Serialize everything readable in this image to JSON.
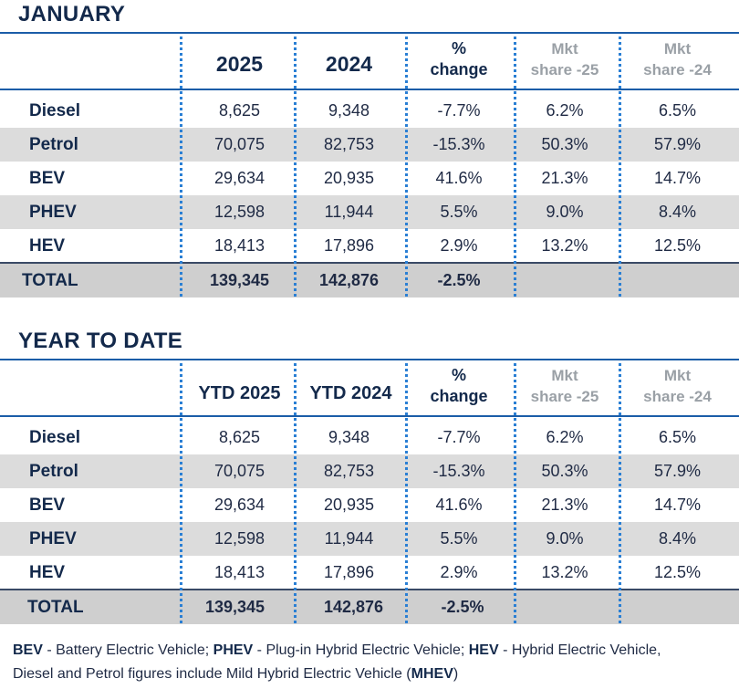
{
  "sections": [
    {
      "title": "JANUARY",
      "headers": [
        "2025",
        "2024",
        "%",
        "change",
        "Mkt",
        "share -25",
        "Mkt",
        "share -24"
      ],
      "rows": [
        {
          "label": "Diesel",
          "v2025": "8,625",
          "v2024": "9,348",
          "change": "-7.7%",
          "share25": "6.2%",
          "share24": "6.5%"
        },
        {
          "label": "Petrol",
          "v2025": "70,075",
          "v2024": "82,753",
          "change": "-15.3%",
          "share25": "50.3%",
          "share24": "57.9%"
        },
        {
          "label": "BEV",
          "v2025": "29,634",
          "v2024": "20,935",
          "change": "41.6%",
          "share25": "21.3%",
          "share24": "14.7%"
        },
        {
          "label": "PHEV",
          "v2025": "12,598",
          "v2024": "11,944",
          "change": "5.5%",
          "share25": "9.0%",
          "share24": "8.4%"
        },
        {
          "label": "HEV",
          "v2025": "18,413",
          "v2024": "17,896",
          "change": "2.9%",
          "share25": "13.2%",
          "share24": "12.5%"
        }
      ],
      "total": {
        "label": "TOTAL",
        "v2025": "139,345",
        "v2024": "142,876",
        "change": "-2.5%"
      }
    },
    {
      "title": "YEAR TO DATE",
      "headers": [
        "YTD 2025",
        "YTD 2024",
        "%",
        "change",
        "Mkt",
        "share -25",
        "Mkt",
        "share -24"
      ],
      "rows": [
        {
          "label": "Diesel",
          "v2025": "8,625",
          "v2024": "9,348",
          "change": "-7.7%",
          "share25": "6.2%",
          "share24": "6.5%"
        },
        {
          "label": "Petrol",
          "v2025": "70,075",
          "v2024": "82,753",
          "change": "-15.3%",
          "share25": "50.3%",
          "share24": "57.9%"
        },
        {
          "label": "BEV",
          "v2025": "29,634",
          "v2024": "20,935",
          "change": "41.6%",
          "share25": "21.3%",
          "share24": "14.7%"
        },
        {
          "label": "PHEV",
          "v2025": "12,598",
          "v2024": "11,944",
          "change": "5.5%",
          "share25": "9.0%",
          "share24": "8.4%"
        },
        {
          "label": "HEV",
          "v2025": "18,413",
          "v2024": "17,896",
          "change": "2.9%",
          "share25": "13.2%",
          "share24": "12.5%"
        }
      ],
      "total": {
        "label": "TOTAL",
        "v2025": "139,345",
        "v2024": "142,876",
        "change": "-2.5%"
      }
    }
  ],
  "footnote": {
    "line1": [
      {
        "t": "BEV",
        "b": true
      },
      {
        "t": " - Battery Electric Vehicle; ",
        "b": false
      },
      {
        "t": "PHEV",
        "b": true
      },
      {
        "t": " - Plug-in Hybrid Electric Vehicle; ",
        "b": false
      },
      {
        "t": "HEV",
        "b": true
      },
      {
        "t": " - Hybrid Electric Vehicle,",
        "b": false
      }
    ],
    "line2": [
      {
        "t": "Diesel and Petrol figures include Mild Hybrid Electric Vehicle (",
        "b": false
      },
      {
        "t": "MHEV",
        "b": true
      },
      {
        "t": ")",
        "b": false
      }
    ]
  },
  "colors": {
    "accent_blue": "#1b5da8",
    "title_navy": "#13294b",
    "shade_grey": "#dcdcdc",
    "muted_header": "#9aa0a6"
  }
}
